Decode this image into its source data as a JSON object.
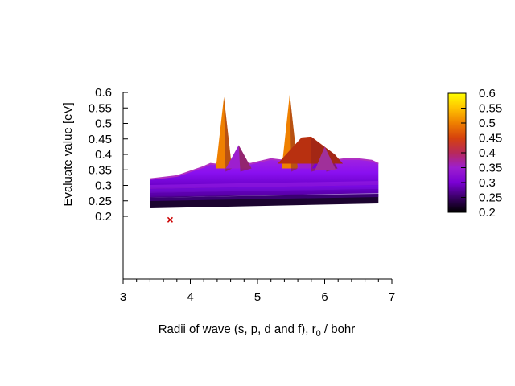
{
  "chart_data": {
    "type": "surface",
    "xlabel": "Radii of wave (s, p, d and f), r",
    "xlabel_sub": "0",
    "xlabel_unit": " / bohr",
    "ylabel": "Evaluate value [eV]",
    "xlim": [
      3,
      7
    ],
    "x_ticks": [
      "3",
      "4",
      "5",
      "6",
      "7"
    ],
    "z_ticks": [
      "0.6",
      "0.55",
      "0.5",
      "0.45",
      "0.4",
      "0.35",
      "0.3",
      "0.25",
      "0.2"
    ],
    "colorbar_ticks": [
      "0.6",
      "0.55",
      "0.5",
      "0.45",
      "0.4",
      "0.35",
      "0.3",
      "0.25",
      "0.2"
    ],
    "zlim": [
      0.2,
      0.6
    ],
    "colormap": [
      "#000000",
      "#3a0066",
      "#7a00d4",
      "#9d1fcf",
      "#b8295a",
      "#d6420c",
      "#ef8000",
      "#ffc200",
      "#ffff00"
    ],
    "x_range_data": [
      3.4,
      6.8
    ],
    "ridge_profile": {
      "x": [
        3.4,
        3.6,
        3.8,
        4.0,
        4.2,
        4.3,
        4.5,
        4.7,
        4.9,
        5.0,
        5.2,
        5.4,
        5.5,
        5.7,
        5.9,
        6.1,
        6.3,
        6.5,
        6.7,
        6.8
      ],
      "z": [
        0.32,
        0.325,
        0.33,
        0.345,
        0.36,
        0.37,
        0.365,
        0.37,
        0.37,
        0.375,
        0.385,
        0.38,
        0.38,
        0.385,
        0.375,
        0.38,
        0.385,
        0.385,
        0.38,
        0.37
      ]
    },
    "peaks": [
      {
        "x": 4.5,
        "z": 0.585
      },
      {
        "x": 4.72,
        "z": 0.43
      },
      {
        "x": 5.48,
        "z": 0.595
      },
      {
        "x": 5.78,
        "z": 0.455
      },
      {
        "x": 6.0,
        "z": 0.425
      }
    ],
    "minimum_marker": {
      "x": 3.7,
      "z": 0.22,
      "color": "#cc0000"
    }
  }
}
